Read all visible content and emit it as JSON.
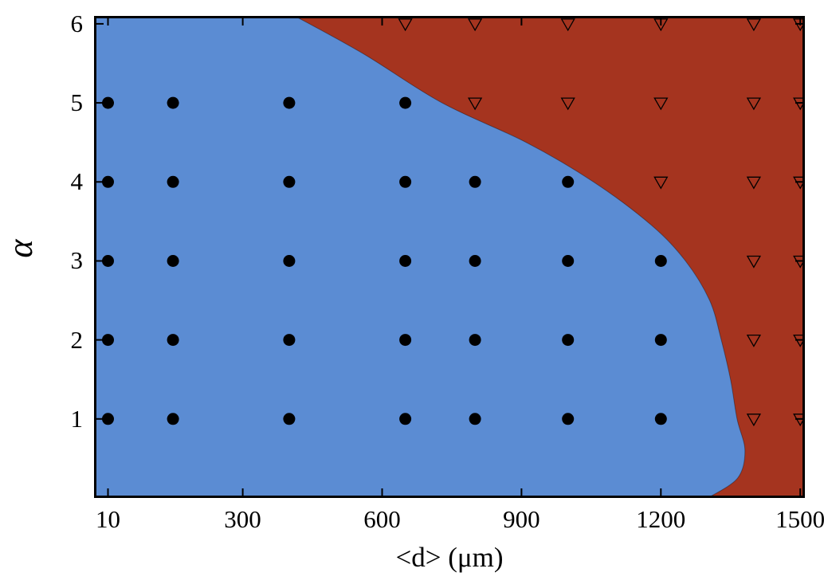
{
  "figure": {
    "background": "#ffffff",
    "border_color": "#000000"
  },
  "chart_data": {
    "type": "scatter",
    "title": "",
    "xlabel": "<d> (μm)",
    "ylabel": "α",
    "xlim": [
      -20,
      1510
    ],
    "ylim": [
      0,
      6.1
    ],
    "xticks": [
      10,
      300,
      600,
      900,
      1200,
      1500
    ],
    "yticks": [
      1,
      2,
      3,
      4,
      5,
      6
    ],
    "grid": false,
    "legend": "none",
    "regions": [
      {
        "name": "flowing-region",
        "side": "left-of-boundary",
        "color": "#5b8cd3"
      },
      {
        "name": "jammed-region",
        "side": "right-of-boundary",
        "color": "#a5341f"
      }
    ],
    "boundary": [
      [
        412,
        6.1
      ],
      [
        560,
        5.62
      ],
      [
        729,
        5.0
      ],
      [
        910,
        4.5
      ],
      [
        1055,
        4.0
      ],
      [
        1180,
        3.45
      ],
      [
        1253,
        3.0
      ],
      [
        1305,
        2.5
      ],
      [
        1330,
        2.0
      ],
      [
        1350,
        1.5
      ],
      [
        1364,
        1.0
      ],
      [
        1381,
        0.6
      ],
      [
        1365,
        0.25
      ],
      [
        1301,
        0.0
      ]
    ],
    "series": [
      {
        "name": "filled-circles",
        "marker": "circle",
        "fill": "#000000",
        "points": [
          [
            10,
            1
          ],
          [
            150,
            1
          ],
          [
            400,
            1
          ],
          [
            650,
            1
          ],
          [
            800,
            1
          ],
          [
            1000,
            1
          ],
          [
            1200,
            1
          ],
          [
            10,
            2
          ],
          [
            150,
            2
          ],
          [
            400,
            2
          ],
          [
            650,
            2
          ],
          [
            800,
            2
          ],
          [
            1000,
            2
          ],
          [
            1200,
            2
          ],
          [
            10,
            3
          ],
          [
            150,
            3
          ],
          [
            400,
            3
          ],
          [
            650,
            3
          ],
          [
            800,
            3
          ],
          [
            1000,
            3
          ],
          [
            1200,
            3
          ],
          [
            10,
            4
          ],
          [
            150,
            4
          ],
          [
            400,
            4
          ],
          [
            650,
            4
          ],
          [
            800,
            4
          ],
          [
            1000,
            4
          ],
          [
            10,
            5
          ],
          [
            150,
            5
          ],
          [
            400,
            5
          ],
          [
            650,
            5
          ]
        ]
      },
      {
        "name": "open-triangles-down",
        "marker": "triangle-down",
        "stroke": "#000000",
        "fill": "none",
        "points": [
          [
            1400,
            1
          ],
          [
            1500,
            1
          ],
          [
            1400,
            2
          ],
          [
            1500,
            2
          ],
          [
            1400,
            3
          ],
          [
            1500,
            3
          ],
          [
            1200,
            4
          ],
          [
            1400,
            4
          ],
          [
            1500,
            4
          ],
          [
            800,
            5
          ],
          [
            1000,
            5
          ],
          [
            1200,
            5
          ],
          [
            1400,
            5
          ],
          [
            1500,
            5
          ],
          [
            650,
            6
          ],
          [
            800,
            6
          ],
          [
            1000,
            6
          ],
          [
            1200,
            6
          ],
          [
            1400,
            6
          ],
          [
            1500,
            6
          ]
        ]
      }
    ]
  }
}
